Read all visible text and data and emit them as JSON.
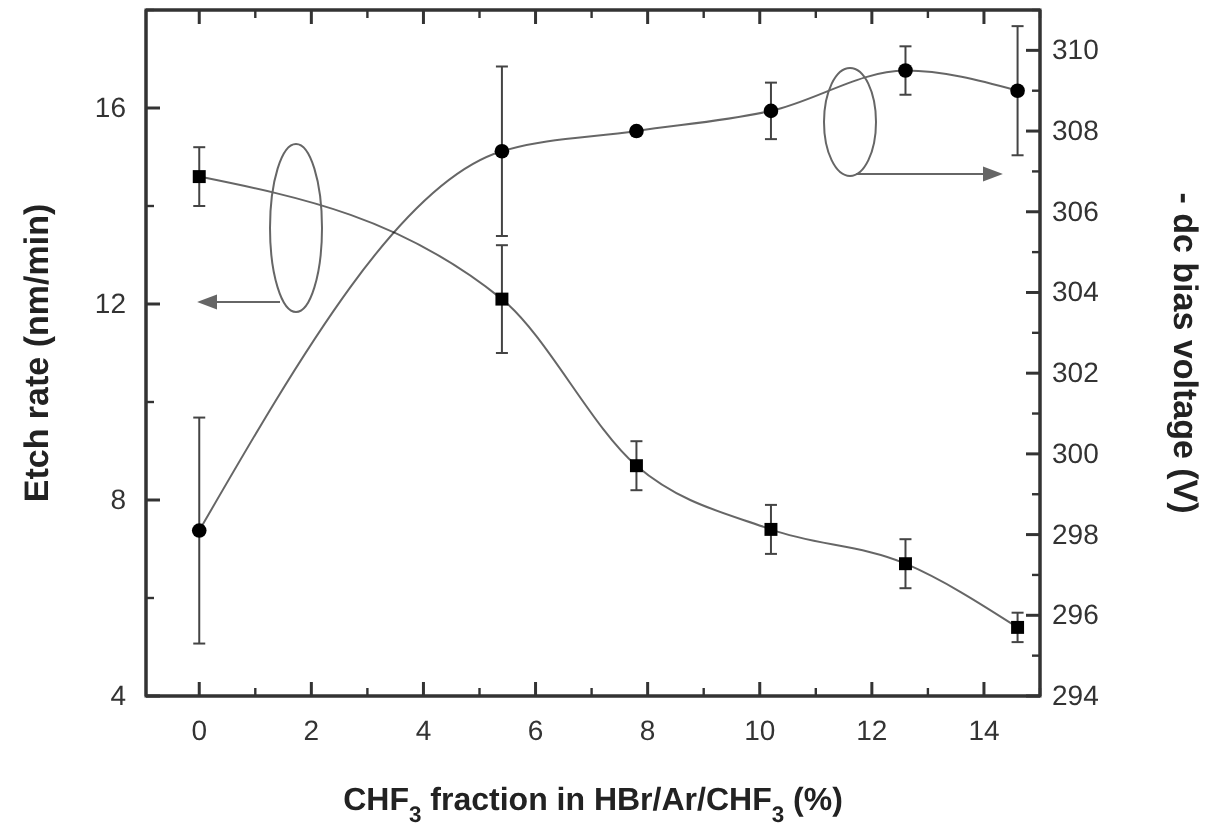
{
  "chart_data": {
    "type": "line",
    "xlabel": "CHF$_{3}$ fraction in HBr/Ar/CHF$_{3}$ (%)",
    "ylabel": "Etch rate (nm/min)",
    "y2label": "- dc bias voltage (V)",
    "x": [
      0,
      5.4,
      7.8,
      10.2,
      12.6,
      14.6
    ],
    "xlim": [
      -0.95,
      15
    ],
    "xticks": [
      0,
      2,
      4,
      6,
      8,
      10,
      12,
      14
    ],
    "ylim": [
      4,
      18
    ],
    "yticks": [
      4,
      8,
      12,
      16
    ],
    "y2lim": [
      294,
      311
    ],
    "y2ticks": [
      294,
      296,
      298,
      300,
      302,
      304,
      306,
      308,
      310
    ],
    "line_style": "solid",
    "grid": false,
    "series": [
      {
        "color": "#000000",
        "marker": "square",
        "values": [
          14.6,
          12.1,
          8.7,
          7.4,
          6.7,
          5.4
        ],
        "errors": [
          0.6,
          1.1,
          0.5,
          0.5,
          0.5,
          0.3
        ]
      },
      {
        "color": "#000000",
        "marker": "circle",
        "axis": "y2",
        "values": [
          298.1,
          307.5,
          308.0,
          308.5,
          309.5,
          309.0
        ],
        "errors": [
          2.8,
          2.1,
          null,
          0.7,
          0.6,
          1.6
        ]
      }
    ]
  }
}
